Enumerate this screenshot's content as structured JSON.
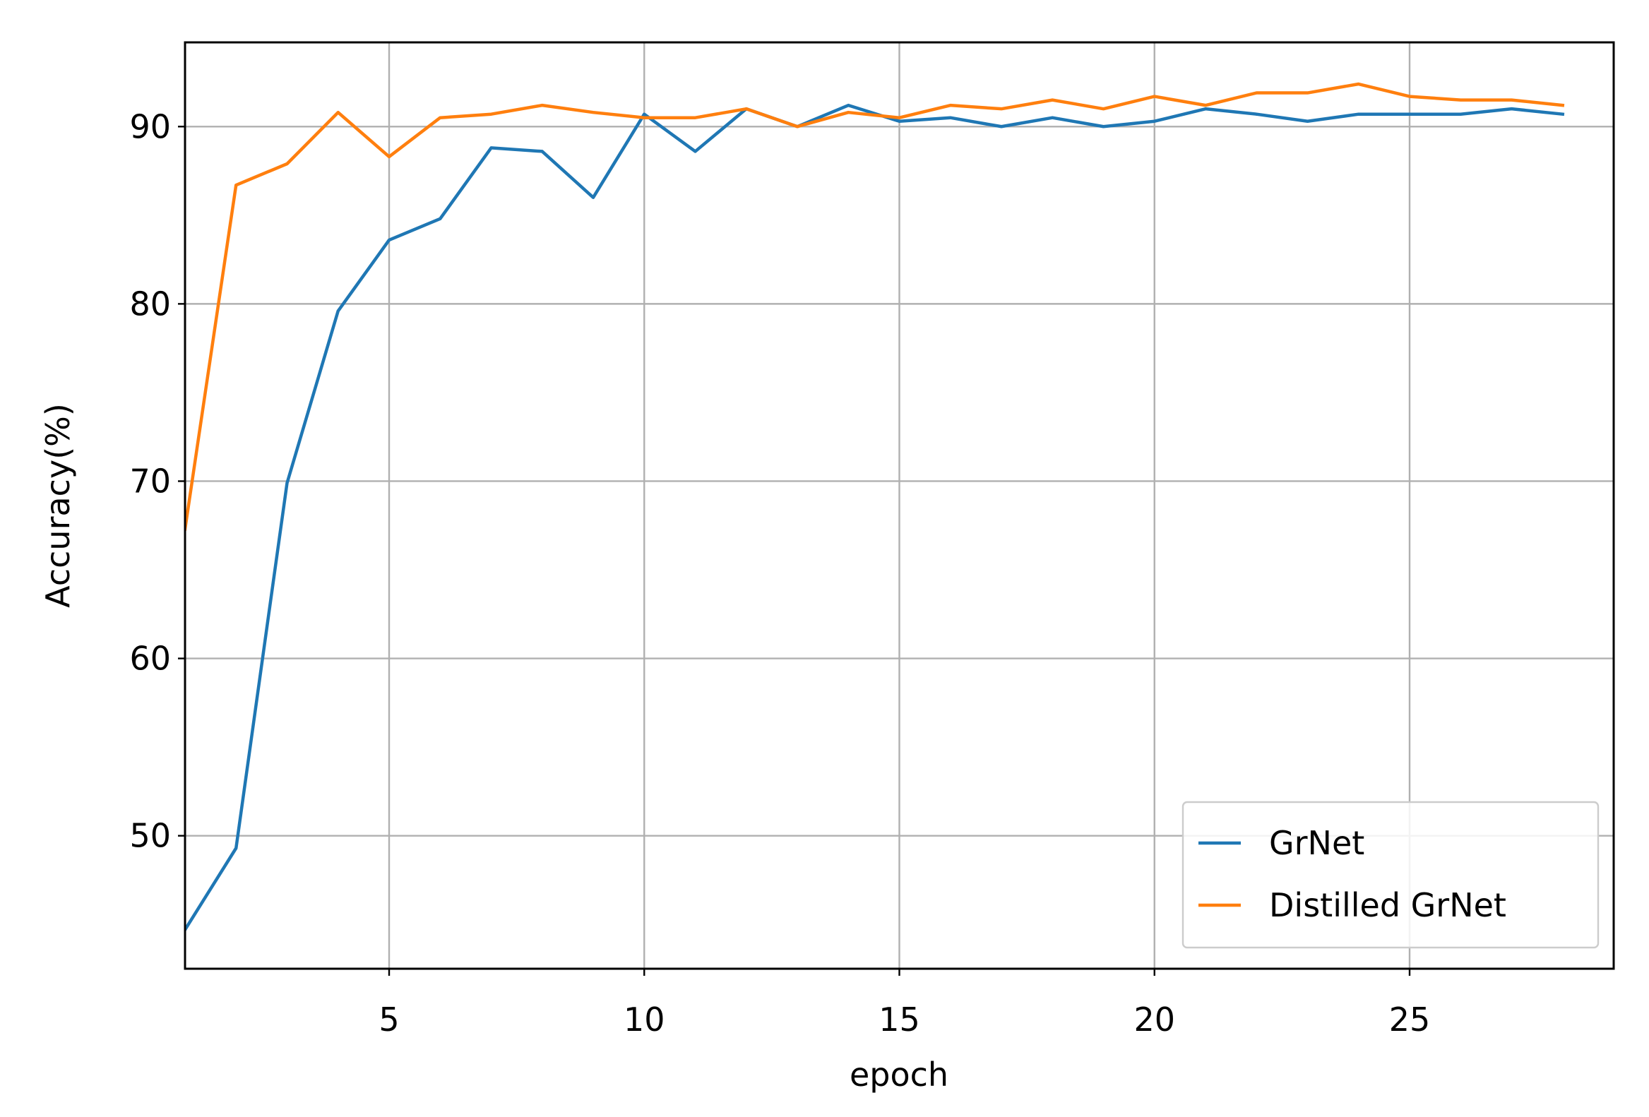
{
  "chart_data": {
    "type": "line",
    "x_label": "epoch",
    "y_label": "Accuracy(%)",
    "x": [
      1,
      2,
      3,
      4,
      5,
      6,
      7,
      8,
      9,
      10,
      11,
      12,
      13,
      14,
      15,
      16,
      17,
      18,
      19,
      20,
      21,
      22,
      23,
      24,
      25,
      26,
      27,
      28
    ],
    "series": [
      {
        "name": "GrNet",
        "color": "#1f77b4",
        "values": [
          44.7,
          49.3,
          69.9,
          79.6,
          83.6,
          84.8,
          88.8,
          88.6,
          86.0,
          90.7,
          88.6,
          91.0,
          90.0,
          91.2,
          90.3,
          90.5,
          90.0,
          90.5,
          90.0,
          90.3,
          91.0,
          90.7,
          90.3,
          90.7,
          90.7,
          90.7,
          91.0,
          90.7
        ]
      },
      {
        "name": "Distilled GrNet",
        "color": "#ff7f0e",
        "values": [
          67.3,
          86.7,
          87.9,
          90.8,
          88.3,
          90.5,
          90.7,
          91.2,
          90.8,
          90.5,
          90.5,
          91.0,
          90.0,
          90.8,
          90.5,
          91.2,
          91.0,
          91.5,
          91.0,
          91.7,
          91.2,
          91.9,
          91.9,
          92.4,
          91.7,
          91.5,
          91.5,
          91.2
        ]
      }
    ],
    "xlim": [
      1,
      29
    ],
    "xticks": [
      5,
      10,
      15,
      20,
      25
    ],
    "ylim": [
      42.5,
      94.75
    ],
    "yticks": [
      50,
      60,
      70,
      80,
      90
    ],
    "grid": true,
    "legend": "lower right"
  }
}
